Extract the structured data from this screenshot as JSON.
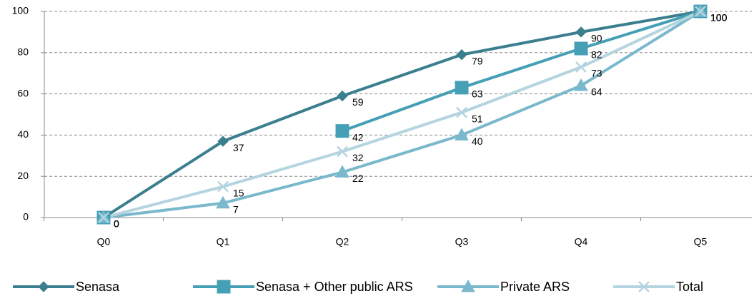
{
  "chart_data": {
    "type": "line",
    "categories": [
      "Q0",
      "Q1",
      "Q2",
      "Q3",
      "Q4",
      "Q5"
    ],
    "series": [
      {
        "name": "Senasa",
        "color": "#3b7f8e",
        "marker": "diamond",
        "values": [
          0,
          37,
          59,
          79,
          90,
          100
        ]
      },
      {
        "name": "Senasa + Other public ARS",
        "color": "#45a0b6",
        "marker": "square",
        "values": [
          0,
          null,
          42,
          63,
          82,
          100
        ]
      },
      {
        "name": "Private ARS",
        "color": "#7ab8cc",
        "marker": "triangle",
        "values": [
          0,
          7,
          22,
          40,
          64,
          100
        ]
      },
      {
        "name": "Total",
        "color": "#b4d4df",
        "marker": "x",
        "values": [
          0,
          15,
          32,
          51,
          73,
          100
        ]
      }
    ],
    "ylim": [
      0,
      100
    ],
    "yticks": [
      0,
      20,
      40,
      60,
      80,
      100
    ],
    "grid": true,
    "legend": "bottom"
  }
}
